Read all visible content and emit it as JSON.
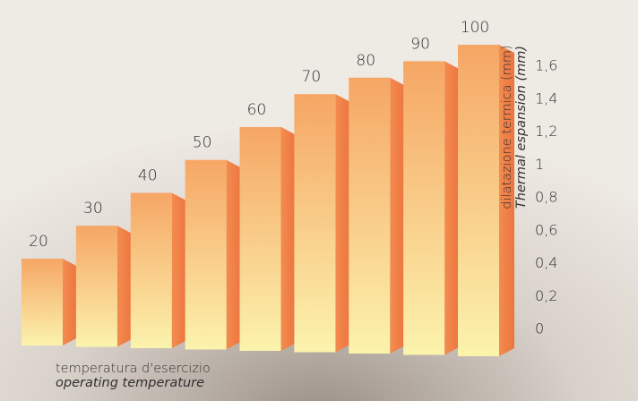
{
  "chart_data": {
    "type": "bar",
    "categories": [
      "20",
      "30",
      "40",
      "50",
      "60",
      "70",
      "80",
      "90",
      "100"
    ],
    "series": [
      {
        "values": [
          0.4,
          0.6,
          0.8,
          1.0,
          1.2,
          1.4,
          1.5,
          1.6,
          1.7
        ]
      }
    ],
    "xlabel": [
      "temperatura d'esercizio",
      "operating temperature"
    ],
    "ylabel": [
      "dilatazione termica (mm)",
      "Thermal espansion (mm)"
    ],
    "yticks": [
      "0",
      "0,2",
      "0,4",
      "0,6",
      "0,8",
      "1",
      "1,2",
      "1,4",
      "1,6"
    ],
    "ylim": [
      0,
      1.6
    ],
    "axis_position": "right",
    "grid": false,
    "legend": "none",
    "colors": {
      "bar_top": "#f6a665",
      "bar_bottom": "#fbf3ad",
      "bar_side": "#f08246",
      "text": "#2f2f2f"
    }
  }
}
